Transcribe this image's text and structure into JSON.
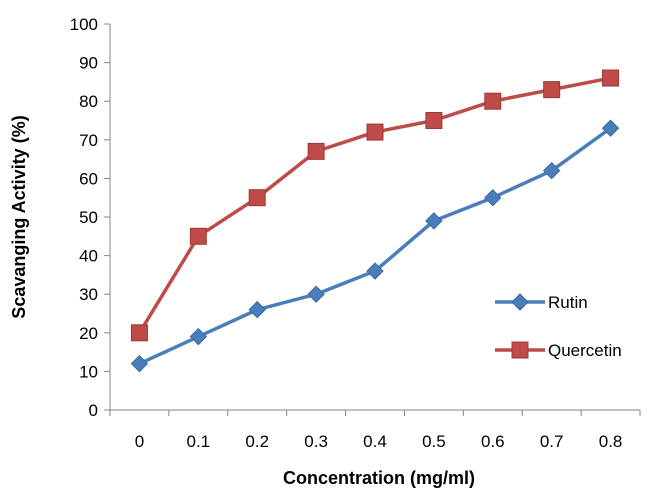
{
  "chart_data": {
    "type": "line",
    "title": "",
    "xlabel": "Concentration (mg/ml)",
    "ylabel": "Scavanging Activity (%)",
    "x": [
      "0",
      "0.1",
      "0.2",
      "0.3",
      "0.4",
      "0.5",
      "0.6",
      "0.7",
      "0.8"
    ],
    "y_ticks": [
      "0",
      "10",
      "20",
      "30",
      "40",
      "50",
      "60",
      "70",
      "80",
      "90",
      "100"
    ],
    "ylim": [
      0,
      100
    ],
    "grid": false,
    "legend_position": "right",
    "series": [
      {
        "name": "Rutin",
        "marker": "diamond",
        "color": "#4a7ebb",
        "values": [
          12,
          19,
          26,
          30,
          36,
          49,
          55,
          62,
          73
        ]
      },
      {
        "name": "Quercetin",
        "marker": "square",
        "color": "#be4b48",
        "values": [
          20,
          45,
          55,
          67,
          72,
          75,
          80,
          83,
          86
        ]
      }
    ]
  }
}
